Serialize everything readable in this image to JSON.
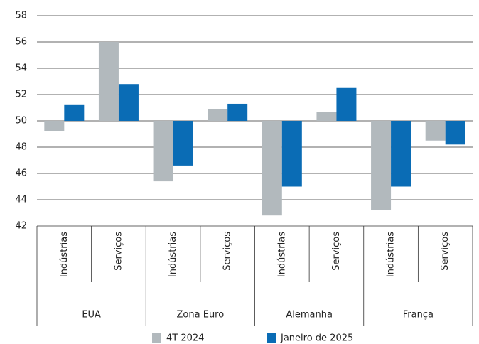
{
  "chart_data": {
    "type": "bar",
    "groups": [
      "EUA",
      "Zona Euro",
      "Alemanha",
      "França"
    ],
    "categories": [
      "Indústrias",
      "Serviços",
      "Indústrias",
      "Serviços",
      "Indústrias",
      "Serviços",
      "Indústrias",
      "Serviços"
    ],
    "series": [
      {
        "name": "4T 2024",
        "color": "#b2b9bd",
        "values": [
          49.2,
          56.0,
          45.4,
          50.9,
          42.8,
          50.7,
          43.2,
          48.5
        ]
      },
      {
        "name": "Janeiro de 2025",
        "color": "#0a6cb5",
        "values": [
          51.2,
          52.8,
          46.6,
          51.3,
          45.0,
          52.5,
          45.0,
          48.2
        ]
      }
    ],
    "bar_base": 50,
    "ylim": [
      42,
      58
    ],
    "yticks": [
      42,
      44,
      46,
      48,
      50,
      52,
      54,
      56,
      58
    ],
    "grid": true,
    "legend": "bottom"
  }
}
